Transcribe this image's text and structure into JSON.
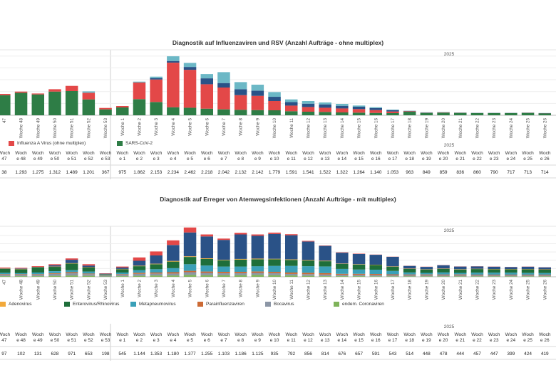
{
  "chart_data": [
    {
      "type": "bar",
      "stacked": true,
      "title": "Diagnostik auf Influenzaviren und RSV (Anzahl Aufträge - ohne multiplex)",
      "year_label": "2025",
      "categories": [
        "47",
        "Woche 48",
        "Woche 49",
        "Woche 50",
        "Woche 51",
        "Woche 52",
        "Woche 53",
        "Woche 1",
        "Woche 2",
        "Woche 3",
        "Woche 4",
        "Woche 5",
        "Woche 6",
        "Woche 7",
        "Woche 8",
        "Woche 9",
        "Woche 10",
        "Woche 11",
        "Woche 12",
        "Woche 13",
        "Woche 14",
        "Woche 15",
        "Woche 16",
        "Woche 17",
        "Woche 18",
        "Woche 19",
        "Woche 20",
        "Woche 21",
        "Woche 22",
        "Woche 23",
        "Woche 24",
        "Woche 25",
        "Woche 26"
      ],
      "series": [
        {
          "name": "SARS-CoV-2",
          "color": "#2e7d46",
          "values": [
            850,
            950,
            880,
            1000,
            1020,
            670,
            250,
            330,
            680,
            560,
            340,
            320,
            280,
            250,
            230,
            220,
            210,
            170,
            150,
            140,
            120,
            110,
            100,
            90,
            150,
            100,
            110,
            100,
            90,
            90,
            90,
            100,
            80
          ]
        },
        {
          "name": "Influenza A Virus (ohne multiplex)",
          "color": "#e34848",
          "values": [
            50,
            50,
            40,
            100,
            220,
            280,
            60,
            60,
            700,
            950,
            1880,
            1600,
            1030,
            920,
            620,
            600,
            390,
            240,
            200,
            180,
            170,
            150,
            120,
            70,
            20,
            10,
            10,
            10,
            5,
            5,
            5,
            5,
            5
          ]
        },
        {
          "name": "",
          "color": "#2a5287",
          "values": [
            0,
            0,
            0,
            0,
            0,
            0,
            0,
            0,
            0,
            60,
            70,
            120,
            250,
            190,
            250,
            220,
            180,
            150,
            140,
            140,
            110,
            100,
            80,
            60,
            15,
            10,
            8,
            5,
            5,
            5,
            5,
            5,
            5
          ]
        },
        {
          "name": "",
          "color": "#6cb8c6",
          "values": [
            0,
            0,
            0,
            0,
            0,
            60,
            0,
            0,
            40,
            60,
            200,
            170,
            180,
            460,
            300,
            250,
            200,
            110,
            110,
            80,
            80,
            50,
            40,
            20,
            5,
            5,
            5,
            5,
            5,
            5,
            5,
            5,
            5
          ]
        }
      ],
      "legend": [
        "Influenza A Virus (ohne multiplex)",
        "SARS-CoV-2"
      ],
      "table": {
        "year_label": "2025",
        "headers": [
          "Woch\n47",
          "Woch\ne 48",
          "Woch\ne 49",
          "Woch\ne 50",
          "Woch\ne 51",
          "Woch\ne 52",
          "Woch\ne 53",
          "Woch\ne 1",
          "Woch\ne 2",
          "Woch\ne 3",
          "Woch\ne 4",
          "Woch\ne 5",
          "Woch\ne 6",
          "Woch\ne 7",
          "Woch\ne 8",
          "Woch\ne 9",
          "Woch\ne 10",
          "Woch\ne 11",
          "Woch\ne 12",
          "Woch\ne 13",
          "Woch\ne 14",
          "Woch\ne 15",
          "Woch\ne 16",
          "Woch\ne 17",
          "Woch\ne 18",
          "Woch\ne 19",
          "Woch\ne 20",
          "Woch\ne 21",
          "Woch\ne 22",
          "Woch\ne 23",
          "Woch\ne 24",
          "Woch\ne 25",
          "Woch\ne 26"
        ],
        "values": [
          "38",
          "1.293",
          "1.275",
          "1.312",
          "1.489",
          "1.201",
          "367",
          "975",
          "1.862",
          "2.153",
          "2.234",
          "2.462",
          "2.218",
          "2.042",
          "2.132",
          "2.142",
          "1.779",
          "1.591",
          "1.541",
          "1.522",
          "1.322",
          "1.264",
          "1.140",
          "1.053",
          "963",
          "849",
          "859",
          "836",
          "860",
          "790",
          "717",
          "713",
          "714"
        ]
      }
    },
    {
      "type": "bar",
      "stacked": true,
      "title": "Diagnostik auf Erreger von Atemwegsinfektionen (Anzahl Aufträge - mit multiplex)",
      "year_label": "2025",
      "categories": [
        "47",
        "Woche 48",
        "Woche 49",
        "Woche 50",
        "Woche 51",
        "Woche 52",
        "Woche 53",
        "Woche 1",
        "Woche 2",
        "Woche 3",
        "Woche 4",
        "Woche 5",
        "Woche 6",
        "Woche 7",
        "Woche 8",
        "Woche 9",
        "Woche 10",
        "Woche 11",
        "Woche 12",
        "Woche 13",
        "Woche 14",
        "Woche 15",
        "Woche 16",
        "Woche 17",
        "Woche 18",
        "Woche 19",
        "Woche 20",
        "Woche 21",
        "Woche 22",
        "Woche 23",
        "Woche 24",
        "Woche 25",
        "Woche 26"
      ],
      "series": [
        {
          "name": "endem. Coronaviren",
          "color": "#7fb35a",
          "values": [
            20,
            20,
            20,
            30,
            40,
            30,
            10,
            20,
            30,
            40,
            40,
            60,
            50,
            50,
            50,
            60,
            50,
            40,
            30,
            20,
            20,
            20,
            15,
            15,
            15,
            15,
            15,
            15,
            15,
            15,
            15,
            15,
            15
          ]
        },
        {
          "name": "Bocavirus",
          "color": "#8c96a6",
          "values": [
            40,
            40,
            40,
            60,
            70,
            50,
            20,
            40,
            60,
            60,
            60,
            80,
            70,
            60,
            60,
            60,
            60,
            50,
            50,
            50,
            40,
            40,
            40,
            30,
            30,
            30,
            30,
            30,
            30,
            30,
            30,
            30,
            30
          ]
        },
        {
          "name": "Parainfluenzaviren",
          "color": "#cc6a35",
          "values": [
            20,
            20,
            20,
            20,
            30,
            20,
            10,
            20,
            30,
            30,
            40,
            40,
            40,
            40,
            40,
            40,
            40,
            40,
            40,
            40,
            30,
            30,
            30,
            30,
            25,
            25,
            25,
            25,
            20,
            20,
            20,
            20,
            20
          ]
        },
        {
          "name": "Metapneumovirus",
          "color": "#3aa0b8",
          "values": [
            40,
            30,
            50,
            60,
            60,
            60,
            10,
            50,
            80,
            100,
            120,
            200,
            180,
            160,
            160,
            160,
            180,
            200,
            200,
            200,
            150,
            130,
            130,
            100,
            60,
            50,
            60,
            50,
            60,
            60,
            60,
            50,
            50
          ]
        },
        {
          "name": "Enterovirus/Rhinovirus",
          "color": "#1e6e3a",
          "values": [
            120,
            120,
            150,
            130,
            200,
            120,
            20,
            100,
            120,
            150,
            200,
            220,
            200,
            190,
            210,
            210,
            200,
            180,
            170,
            160,
            150,
            150,
            140,
            130,
            110,
            100,
            110,
            100,
            110,
            100,
            100,
            110,
            100
          ]
        },
        {
          "name": "Adenovirus",
          "color": "#f2a93b",
          "values": [
            10,
            10,
            10,
            10,
            15,
            10,
            5,
            10,
            15,
            15,
            20,
            20,
            20,
            15,
            20,
            20,
            15,
            15,
            15,
            15,
            10,
            10,
            10,
            10,
            10,
            10,
            10,
            10,
            10,
            10,
            10,
            10,
            10
          ]
        },
        {
          "name": "",
          "color": "#2a5287",
          "values": [
            10,
            10,
            10,
            40,
            100,
            50,
            20,
            40,
            150,
            250,
            480,
            720,
            660,
            600,
            740,
            690,
            750,
            730,
            560,
            450,
            330,
            310,
            300,
            290,
            80,
            70,
            100,
            80,
            70,
            70,
            60,
            70,
            60
          ]
        },
        {
          "name": "",
          "color": "#e34848",
          "values": [
            20,
            20,
            20,
            30,
            40,
            40,
            10,
            30,
            100,
            120,
            140,
            150,
            60,
            40,
            50,
            40,
            40,
            30,
            20,
            10,
            10,
            10,
            5,
            5,
            5,
            5,
            5,
            5,
            5,
            5,
            5,
            5,
            5
          ]
        }
      ],
      "legend": [
        "Adenovirus",
        "Enterovirus/Rhinovirus",
        "Metapneumovirus",
        "Parainfluenzaviren",
        "Bocavirus",
        "endem. Coronaviren"
      ],
      "table": {
        "year_label": "2025",
        "headers": [
          "Woch\n47",
          "Woch\ne 48",
          "Woch\ne 49",
          "Woch\ne 50",
          "Woch\ne 51",
          "Woch\ne 52",
          "Woch\ne 53",
          "Woch\ne 1",
          "Woch\ne 2",
          "Woch\ne 3",
          "Woch\ne 4",
          "Woch\ne 5",
          "Woch\ne 6",
          "Woch\ne 7",
          "Woch\ne 8",
          "Woch\ne 9",
          "Woch\ne 10",
          "Woch\ne 11",
          "Woch\ne 12",
          "Woch\ne 13",
          "Woch\ne 14",
          "Woch\ne 15",
          "Woch\ne 16",
          "Woch\ne 17",
          "Woch\ne 18",
          "Woch\ne 19",
          "Woch\ne 20",
          "Woch\ne 21",
          "Woch\ne 22",
          "Woch\ne 23",
          "Woch\ne 24",
          "Woch\ne 25",
          "Woch\ne 26"
        ],
        "values": [
          "97",
          "102",
          "131",
          "628",
          "971",
          "653",
          "198",
          "545",
          "1.144",
          "1.353",
          "1.180",
          "1.377",
          "1.255",
          "1.103",
          "1.186",
          "1.125",
          "935",
          "792",
          "856",
          "814",
          "676",
          "657",
          "591",
          "543",
          "514",
          "448",
          "478",
          "444",
          "457",
          "447",
          "399",
          "424",
          "419"
        ]
      }
    }
  ]
}
